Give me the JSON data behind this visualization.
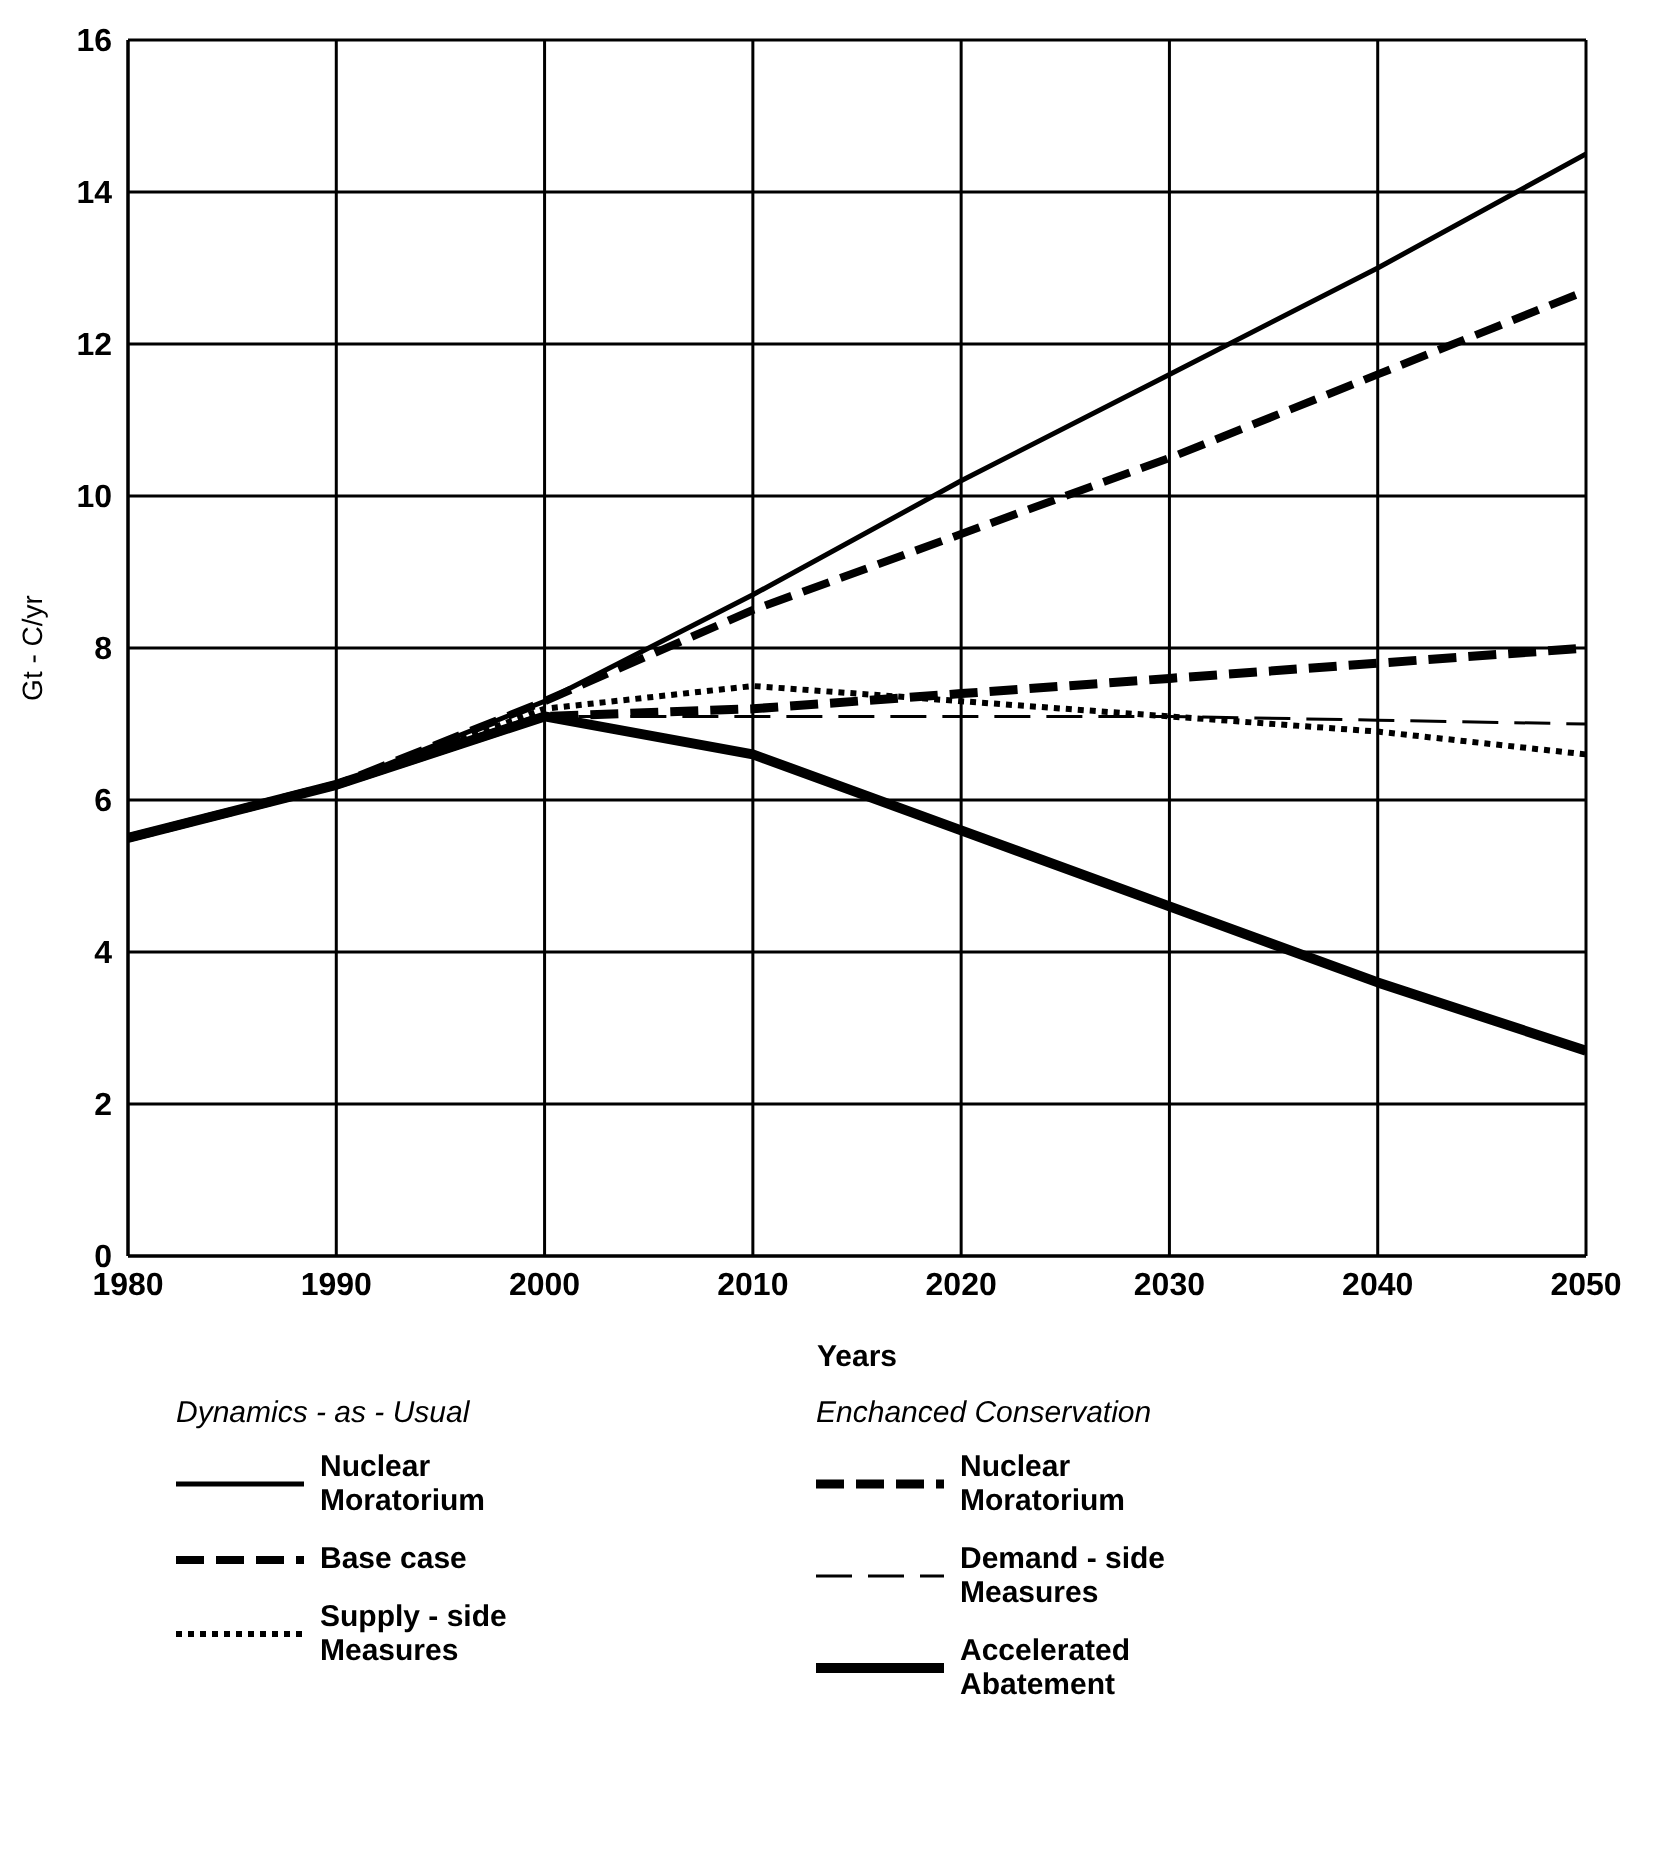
{
  "chart_data": {
    "type": "line",
    "xlabel": "Years",
    "ylabel": "Gt - C/yr",
    "x": [
      1980,
      1990,
      2000,
      2010,
      2020,
      2030,
      2040,
      2050
    ],
    "xlim": [
      1980,
      2050
    ],
    "xticks": [
      1980,
      1990,
      2000,
      2010,
      2020,
      2030,
      2040,
      2050
    ],
    "ylim": [
      0,
      16
    ],
    "yticks": [
      0,
      2,
      4,
      6,
      8,
      10,
      12,
      14,
      16
    ],
    "grid": true,
    "legend": "bottom",
    "marker": "none",
    "annotations": [
      "Dynamics - as - Usual",
      "Enchanced Conservation"
    ],
    "series": [
      {
        "name": "Nuclear Moratorium",
        "color": "#000000",
        "line_style": "solid",
        "values": [
          5.5,
          6.2,
          7.3,
          8.7,
          10.2,
          11.6,
          13.0,
          14.5
        ]
      },
      {
        "name": "Base case",
        "color": "#000000",
        "line_style": "dashed",
        "values": [
          5.5,
          6.2,
          7.3,
          8.5,
          9.5,
          10.5,
          11.6,
          12.7
        ]
      },
      {
        "name": "Supply - side Measures",
        "color": "#000000",
        "line_style": "dotted",
        "values": [
          5.5,
          6.2,
          7.2,
          7.5,
          7.3,
          7.1,
          6.9,
          6.6
        ]
      },
      {
        "name": "Nuclear Moratorium",
        "color": "#000000",
        "line_style": "dashed",
        "values": [
          5.5,
          6.2,
          7.1,
          7.2,
          7.4,
          7.6,
          7.8,
          8.0
        ]
      },
      {
        "name": "Demand - side Measures",
        "color": "#000000",
        "line_style": "dashed",
        "values": [
          5.5,
          6.2,
          7.1,
          7.1,
          7.1,
          7.1,
          7.05,
          7.0
        ]
      },
      {
        "name": "Accelerated Abatement",
        "color": "#000000",
        "line_style": "solid",
        "values": [
          5.5,
          6.2,
          7.1,
          6.6,
          5.6,
          4.6,
          3.6,
          2.7
        ]
      }
    ]
  }
}
